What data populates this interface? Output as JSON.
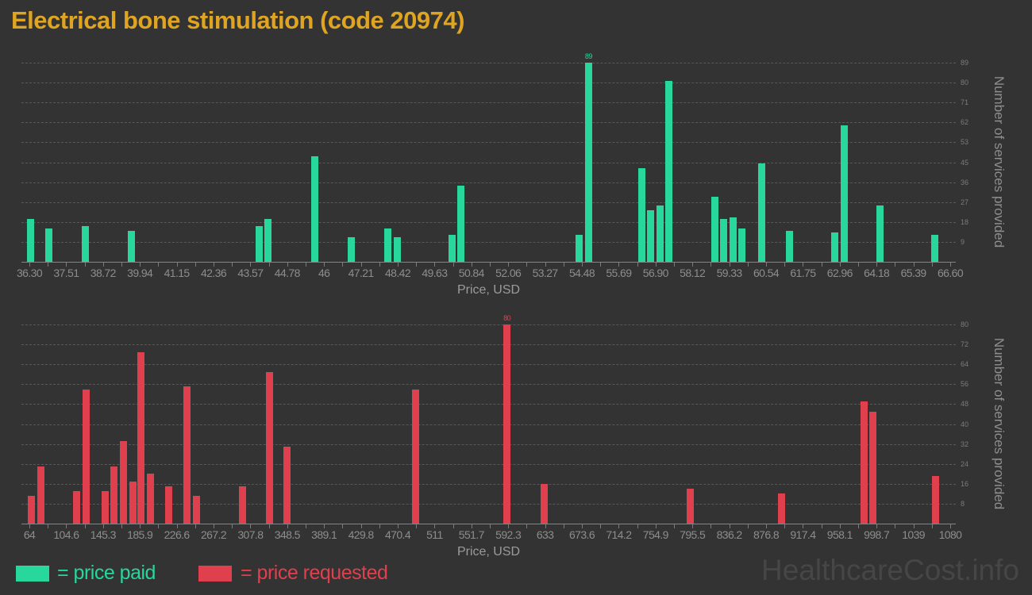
{
  "title": "Electrical bone stimulation (code 20974)",
  "watermark": "HealthcareCost.info",
  "legend": {
    "paid_label": "= price paid",
    "requested_label": "= price requested"
  },
  "colors": {
    "background": "#333333",
    "title": "#dfa522",
    "paid": "#28d79c",
    "requested": "#e0404e",
    "grid": "#585858",
    "axis_text": "#8d8d8d",
    "watermark": "#464646"
  },
  "chart_data": [
    {
      "type": "bar",
      "series_name": "price paid",
      "xlabel": "Price, USD",
      "ylabel": "Number of services provided",
      "x_tick_labels": [
        "36.30",
        "37.51",
        "38.72",
        "39.94",
        "41.15",
        "42.36",
        "43.57",
        "44.78",
        "46",
        "47.21",
        "48.42",
        "49.63",
        "50.84",
        "52.06",
        "53.27",
        "54.48",
        "55.69",
        "56.90",
        "58.12",
        "59.33",
        "60.54",
        "61.75",
        "62.96",
        "64.18",
        "65.39",
        "66.60"
      ],
      "x_range": [
        36.3,
        66.6
      ],
      "y_tick_labels": [
        "9",
        "18",
        "27",
        "36",
        "45",
        "53",
        "62",
        "71",
        "80",
        "89"
      ],
      "ylim": [
        0,
        89
      ],
      "grid": "dashed",
      "max_point_label": {
        "text": "89",
        "price": 54.7
      },
      "points": [
        {
          "price": 36.35,
          "count": 19
        },
        {
          "price": 36.95,
          "count": 15
        },
        {
          "price": 38.15,
          "count": 16
        },
        {
          "price": 39.65,
          "count": 14
        },
        {
          "price": 43.85,
          "count": 16
        },
        {
          "price": 44.15,
          "count": 19
        },
        {
          "price": 45.7,
          "count": 47
        },
        {
          "price": 46.9,
          "count": 11
        },
        {
          "price": 48.1,
          "count": 15
        },
        {
          "price": 48.4,
          "count": 11
        },
        {
          "price": 50.2,
          "count": 12
        },
        {
          "price": 50.5,
          "count": 34
        },
        {
          "price": 54.4,
          "count": 12
        },
        {
          "price": 54.7,
          "count": 89
        },
        {
          "price": 56.45,
          "count": 42
        },
        {
          "price": 56.75,
          "count": 23
        },
        {
          "price": 57.05,
          "count": 25
        },
        {
          "price": 57.35,
          "count": 81
        },
        {
          "price": 58.85,
          "count": 29
        },
        {
          "price": 59.15,
          "count": 19
        },
        {
          "price": 59.45,
          "count": 20
        },
        {
          "price": 59.75,
          "count": 15
        },
        {
          "price": 60.4,
          "count": 44
        },
        {
          "price": 61.3,
          "count": 14
        },
        {
          "price": 62.8,
          "count": 13
        },
        {
          "price": 63.1,
          "count": 61
        },
        {
          "price": 64.3,
          "count": 25
        },
        {
          "price": 66.1,
          "count": 12
        }
      ]
    },
    {
      "type": "bar",
      "series_name": "price requested",
      "xlabel": "Price, USD",
      "ylabel": "Number of services provided",
      "x_tick_labels": [
        "64",
        "104.6",
        "145.3",
        "185.9",
        "226.6",
        "267.2",
        "307.8",
        "348.5",
        "389.1",
        "429.8",
        "470.4",
        "511",
        "551.7",
        "592.3",
        "633",
        "673.6",
        "714.2",
        "754.9",
        "795.5",
        "836.2",
        "876.8",
        "917.4",
        "958.1",
        "998.7",
        "1039",
        "1080"
      ],
      "x_range": [
        64,
        1080
      ],
      "y_tick_labels": [
        "8",
        "16",
        "24",
        "32",
        "40",
        "48",
        "56",
        "64",
        "72",
        "80"
      ],
      "ylim": [
        0,
        80
      ],
      "grid": "dashed",
      "max_point_label": {
        "text": "80",
        "price": 591
      },
      "points": [
        {
          "price": 66,
          "count": 11
        },
        {
          "price": 77,
          "count": 23
        },
        {
          "price": 116,
          "count": 13
        },
        {
          "price": 127,
          "count": 54
        },
        {
          "price": 148,
          "count": 13
        },
        {
          "price": 157,
          "count": 23
        },
        {
          "price": 168,
          "count": 33
        },
        {
          "price": 178,
          "count": 17
        },
        {
          "price": 187,
          "count": 69
        },
        {
          "price": 198,
          "count": 20
        },
        {
          "price": 218,
          "count": 15
        },
        {
          "price": 238,
          "count": 55
        },
        {
          "price": 248,
          "count": 11
        },
        {
          "price": 299,
          "count": 15
        },
        {
          "price": 329,
          "count": 61
        },
        {
          "price": 348,
          "count": 31
        },
        {
          "price": 490,
          "count": 54
        },
        {
          "price": 591,
          "count": 80
        },
        {
          "price": 632,
          "count": 16
        },
        {
          "price": 793,
          "count": 14
        },
        {
          "price": 894,
          "count": 12
        },
        {
          "price": 985,
          "count": 49
        },
        {
          "price": 995,
          "count": 45
        },
        {
          "price": 1064,
          "count": 19
        }
      ]
    }
  ]
}
